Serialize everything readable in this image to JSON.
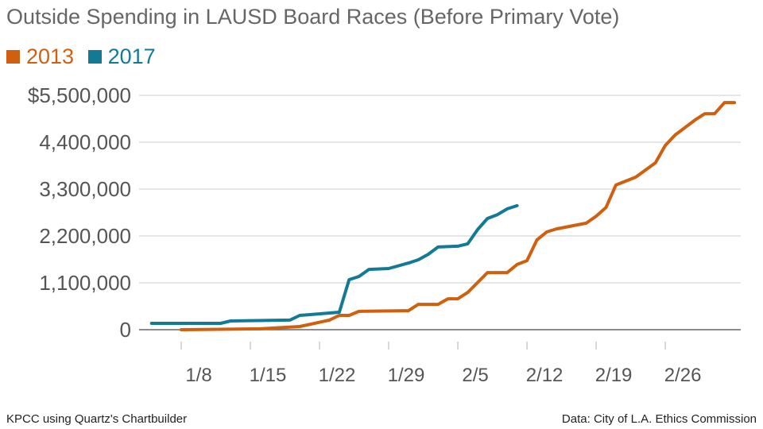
{
  "chart_data": {
    "type": "line",
    "title": "Outside Spending in LAUSD Board Races (Before Primary Vote)",
    "xlabel": "",
    "ylabel": "",
    "ylim": [
      0,
      5500000
    ],
    "yticks": [
      0,
      1100000,
      2200000,
      3300000,
      4400000,
      5500000
    ],
    "ytick_labels": [
      "0",
      "1,100,000",
      "2,200,000",
      "3,300,000",
      "4,400,000",
      "$5,500,000"
    ],
    "xticks": [
      "1/8",
      "1/15",
      "1/22",
      "1/29",
      "2/5",
      "2/12",
      "2/19",
      "2/26"
    ],
    "grid": true,
    "legend_position": "top-left",
    "series": [
      {
        "name": "2013",
        "color": "#d0600f",
        "points": [
          [
            "1/8",
            0
          ],
          [
            "1/16",
            20000
          ],
          [
            "1/20",
            75000
          ],
          [
            "1/23",
            225000
          ],
          [
            "1/24",
            335000
          ],
          [
            "1/25",
            335000
          ],
          [
            "1/26",
            430000
          ],
          [
            "1/31",
            445000
          ],
          [
            "2/1",
            595000
          ],
          [
            "2/3",
            595000
          ],
          [
            "2/4",
            725000
          ],
          [
            "2/5",
            725000
          ],
          [
            "2/6",
            875000
          ],
          [
            "2/8",
            1340000
          ],
          [
            "2/10",
            1340000
          ],
          [
            "2/11",
            1530000
          ],
          [
            "2/12",
            1620000
          ],
          [
            "2/13",
            2105000
          ],
          [
            "2/14",
            2295000
          ],
          [
            "2/15",
            2365000
          ],
          [
            "2/18",
            2500000
          ],
          [
            "2/19",
            2665000
          ],
          [
            "2/20",
            2870000
          ],
          [
            "2/21",
            3395000
          ],
          [
            "2/23",
            3580000
          ],
          [
            "2/25",
            3915000
          ],
          [
            "2/26",
            4325000
          ],
          [
            "2/27",
            4570000
          ],
          [
            "3/1",
            4920000
          ],
          [
            "3/2",
            5070000
          ],
          [
            "3/3",
            5070000
          ],
          [
            "3/4",
            5330000
          ],
          [
            "3/5",
            5330000
          ]
        ]
      },
      {
        "name": "2017",
        "color": "#137a96",
        "points": [
          [
            "1/5",
            150000
          ],
          [
            "1/12",
            150000
          ],
          [
            "1/13",
            205000
          ],
          [
            "1/19",
            225000
          ],
          [
            "1/20",
            335000
          ],
          [
            "1/24",
            410000
          ],
          [
            "1/25",
            1175000
          ],
          [
            "1/26",
            1250000
          ],
          [
            "1/27",
            1415000
          ],
          [
            "1/29",
            1435000
          ],
          [
            "1/31",
            1565000
          ],
          [
            "2/1",
            1640000
          ],
          [
            "2/2",
            1770000
          ],
          [
            "2/3",
            1940000
          ],
          [
            "2/5",
            1960000
          ],
          [
            "2/6",
            2015000
          ],
          [
            "2/7",
            2350000
          ],
          [
            "2/8",
            2610000
          ],
          [
            "2/9",
            2700000
          ],
          [
            "2/10",
            2835000
          ],
          [
            "2/11",
            2910000
          ]
        ]
      }
    ]
  },
  "footer": {
    "credit": "KPCC using Quartz's Chartbuilder",
    "source": "Data: City of L.A. Ethics Commission"
  }
}
